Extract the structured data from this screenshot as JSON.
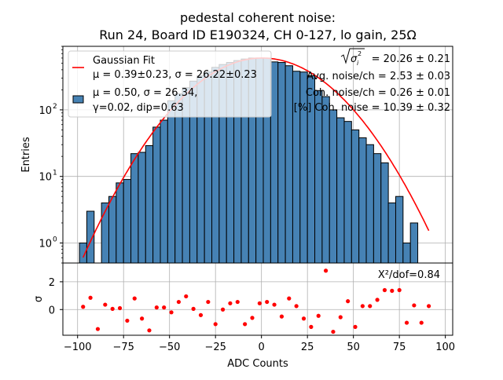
{
  "chart_data": [
    {
      "type": "bar",
      "panel": "main",
      "title": [
        "pedestal coherent noise:",
        "Run 24, Board ID E190324, CH 0-127, lo gain, 25Ω"
      ],
      "xlabel": "",
      "ylabel": "Entries",
      "yscale": "log",
      "ylim": [
        0.5,
        900
      ],
      "xlim": [
        -108,
        104
      ],
      "grid": true,
      "ytick_labels": [
        {
          "value": 1,
          "base": "10",
          "exp": "0"
        },
        {
          "value": 10,
          "base": "10",
          "exp": "1"
        },
        {
          "value": 100,
          "base": "10",
          "exp": "2"
        }
      ],
      "bin_edges_start": -99,
      "bin_width": 4,
      "values": [
        1,
        3,
        0,
        4,
        5,
        8,
        9,
        22,
        23,
        29,
        55,
        70,
        137,
        175,
        215,
        270,
        325,
        370,
        435,
        480,
        515,
        550,
        580,
        600,
        600,
        600,
        525,
        515,
        460,
        380,
        370,
        325,
        195,
        158,
        100,
        76,
        67,
        50,
        38,
        30,
        22,
        16,
        4,
        5,
        1,
        2
      ],
      "bar_color": "#4682b4",
      "fit": {
        "mu": 0.39,
        "sigma": 26.22,
        "amplitude": 600,
        "x_range": [
          -97,
          91
        ],
        "color": "#ff0000"
      },
      "legend": {
        "placement": "upper-left",
        "entries": [
          {
            "kind": "line",
            "color": "#ff0000",
            "lines": [
              "Gaussian Fit",
              "μ = 0.39±0.23, σ = 26.22±0.23"
            ]
          },
          {
            "kind": "patch",
            "color": "#4682b4",
            "lines": [
              "μ = 0.50, σ = 26.34,",
              "γ=0.02, dip=0.63"
            ]
          }
        ]
      },
      "annotations": {
        "sigma_sqrt_label": "σ",
        "sigma_sub": "i",
        "sigma_sup": "2",
        "sigma_value": " = 20.26 ± 0.21",
        "avg_noise": "Avg. noise/ch = 2.53 ± 0.03",
        "coh_noise": "Coh. noise/ch = 0.26 ± 0.01",
        "pct_coh_noise": "[%] Coh. noise = 10.39  ± 0.32"
      }
    },
    {
      "type": "scatter",
      "panel": "residuals",
      "xlabel": "ADC Counts",
      "ylabel": "σ",
      "xlim": [
        -108,
        104
      ],
      "ylim": [
        -1.85,
        3.35
      ],
      "grid": true,
      "x_ticks": [
        "−100",
        "−75",
        "−50",
        "−25",
        "0",
        "25",
        "50",
        "75",
        "100"
      ],
      "x_tick_values": [
        -100,
        -75,
        -50,
        -25,
        0,
        25,
        50,
        75,
        100
      ],
      "y_ticks": [
        "0",
        "2"
      ],
      "y_tick_values": [
        0,
        2
      ],
      "annotation": "X²/dof=0.84",
      "point_color": "#ff0000",
      "x": [
        -97,
        -93,
        -89,
        -85,
        -81,
        -77,
        -73,
        -69,
        -65,
        -61,
        -57,
        -53,
        -49,
        -45,
        -41,
        -37,
        -33,
        -29,
        -25,
        -21,
        -17,
        -13,
        -9,
        -5,
        -1,
        3,
        7,
        11,
        15,
        19,
        23,
        27,
        31,
        35,
        39,
        43,
        47,
        51,
        55,
        59,
        63,
        67,
        71,
        75,
        79,
        83,
        87,
        91
      ],
      "y": [
        0.2,
        0.85,
        -1.4,
        0.35,
        0.05,
        0.1,
        -0.8,
        0.8,
        -0.65,
        -1.5,
        0.15,
        0.15,
        -0.2,
        0.55,
        0.95,
        0.05,
        -0.4,
        0.55,
        -1.05,
        0.0,
        0.45,
        0.55,
        -1.05,
        -0.6,
        0.45,
        0.55,
        0.35,
        -0.5,
        0.8,
        0.25,
        -0.65,
        -1.25,
        -0.45,
        2.8,
        -1.6,
        -0.55,
        0.6,
        -1.25,
        0.25,
        0.25,
        0.7,
        1.4,
        1.35,
        1.4,
        -0.95,
        0.3,
        -0.95,
        0.25
      ]
    }
  ]
}
